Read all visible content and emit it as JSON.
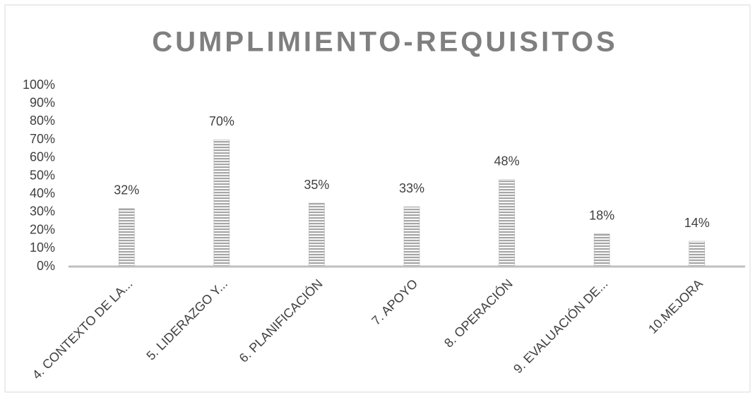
{
  "chart_data": {
    "type": "bar",
    "title": "CUMPLIMIENTO-REQUISITOS",
    "categories": [
      "4. CONTEXTO DE LA...",
      "5. LIDERAZGO Y...",
      "6. PLANIFICACIÓN",
      "7. APOYO",
      "8. OPERACIÓN",
      "9. EVALUACIÓN DE...",
      "10.MEJORA"
    ],
    "values": [
      32,
      70,
      35,
      33,
      48,
      18,
      14
    ],
    "value_labels": [
      "32%",
      "70%",
      "35%",
      "33%",
      "48%",
      "18%",
      "14%"
    ],
    "color": "#a6a6a6",
    "ylim": [
      0,
      100
    ],
    "yticks": [
      {
        "value": 0,
        "label": "0%"
      },
      {
        "value": 10,
        "label": "10%"
      },
      {
        "value": 20,
        "label": "20%"
      },
      {
        "value": 30,
        "label": "30%"
      },
      {
        "value": 40,
        "label": "40%"
      },
      {
        "value": 50,
        "label": "50%"
      },
      {
        "value": 60,
        "label": "60%"
      },
      {
        "value": 70,
        "label": "70%"
      },
      {
        "value": 80,
        "label": "80%"
      },
      {
        "value": 90,
        "label": "90%"
      },
      {
        "value": 100,
        "label": "100%"
      }
    ],
    "grid": false
  }
}
